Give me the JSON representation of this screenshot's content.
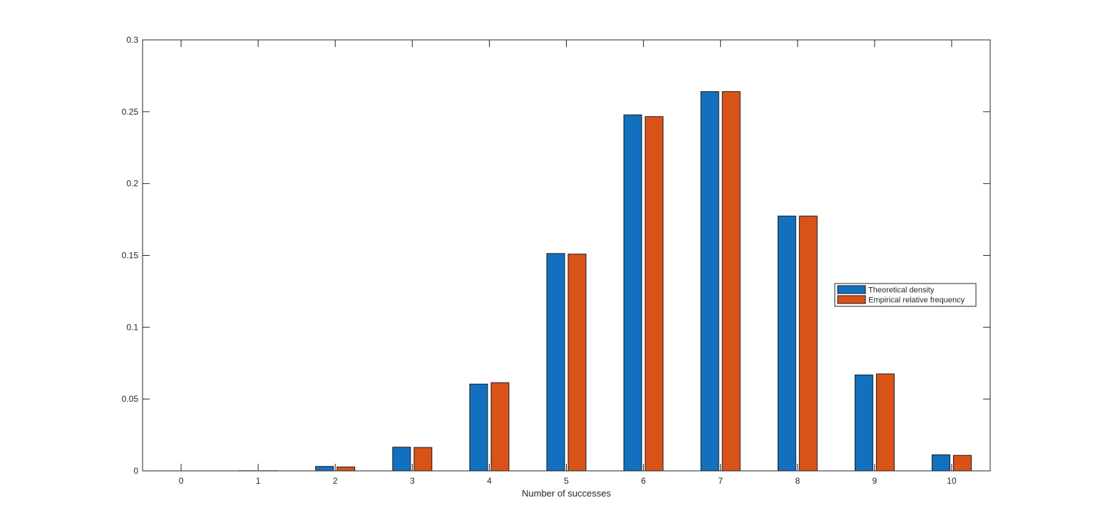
{
  "chart_data": {
    "type": "bar",
    "title": "",
    "xlabel": "Number of successes",
    "ylabel": "",
    "categories": [
      "0",
      "1",
      "2",
      "3",
      "4",
      "5",
      "6",
      "7",
      "8",
      "9",
      "10"
    ],
    "series": [
      {
        "name": "Theoretical density",
        "color": "#1370BE",
        "values": [
          0.0,
          0.0001,
          0.0031,
          0.0165,
          0.0604,
          0.1513,
          0.2478,
          0.264,
          0.1774,
          0.0668,
          0.0112
        ]
      },
      {
        "name": "Empirical relative frequency",
        "color": "#D95319",
        "values": [
          0.0,
          0.0001,
          0.0027,
          0.0163,
          0.0614,
          0.1509,
          0.2466,
          0.264,
          0.1774,
          0.0675,
          0.0108
        ]
      }
    ],
    "ylim": [
      0,
      0.3
    ],
    "yticks": [
      "0",
      "0.05",
      "0.1",
      "0.15",
      "0.2",
      "0.25",
      "0.3"
    ],
    "xlim": [
      -0.5,
      10.5
    ],
    "grid": false,
    "legend_position": "right"
  }
}
